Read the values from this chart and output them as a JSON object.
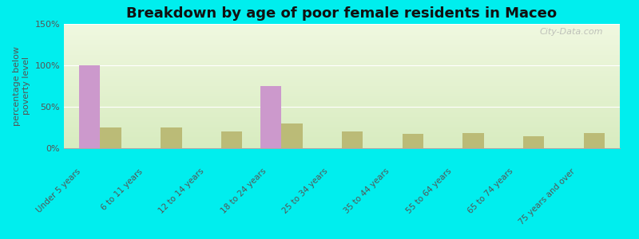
{
  "title": "Breakdown by age of poor female residents in Maceo",
  "categories": [
    "Under 5 years",
    "6 to 11 years",
    "12 to 14 years",
    "18 to 24 years",
    "25 to 34 years",
    "35 to 44 years",
    "55 to 64 years",
    "65 to 74 years",
    "75 years and over"
  ],
  "maceo_values": [
    100,
    0,
    0,
    75,
    0,
    0,
    0,
    0,
    0
  ],
  "kentucky_values": [
    25,
    25,
    20,
    30,
    20,
    17,
    18,
    14,
    18
  ],
  "maceo_color": "#cc99cc",
  "kentucky_color": "#bbbb77",
  "background_color": "#00eeee",
  "plot_bg_top": "#d8ecc0",
  "plot_bg_bottom": "#f0f8e0",
  "ylabel": "percentage below\npoverty level",
  "ylim": [
    0,
    150
  ],
  "yticks": [
    0,
    50,
    100,
    150
  ],
  "ytick_labels": [
    "0%",
    "50%",
    "100%",
    "150%"
  ],
  "title_fontsize": 13,
  "bar_width": 0.35,
  "watermark": "City-Data.com"
}
